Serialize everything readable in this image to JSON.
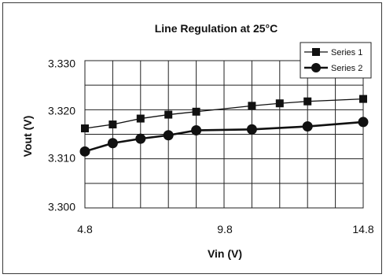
{
  "chart_data": {
    "type": "line",
    "title": "Line Regulation at 25°C",
    "xlabel": "Vin (V)",
    "ylabel": "Vout (V)",
    "xlim": [
      4.8,
      14.8
    ],
    "ylim": [
      3.3,
      3.33
    ],
    "x_ticks": [
      "4.8",
      "9.8",
      "14.8"
    ],
    "y_ticks": [
      "3.330",
      "3.320",
      "3.310",
      "3.300"
    ],
    "grid": true,
    "legend_position": "top-right",
    "series": [
      {
        "name": "Series 1",
        "marker": "square",
        "x": [
          4.8,
          5.8,
          6.8,
          7.8,
          8.8,
          10.8,
          11.8,
          12.8,
          14.8
        ],
        "y": [
          3.3162,
          3.317,
          3.3182,
          3.319,
          3.3196,
          3.3208,
          3.3213,
          3.3217,
          3.3222
        ]
      },
      {
        "name": "Series 2",
        "marker": "circle",
        "x": [
          4.8,
          5.8,
          6.8,
          7.8,
          8.8,
          10.8,
          12.8,
          14.8
        ],
        "y": [
          3.3115,
          3.3132,
          3.3141,
          3.3148,
          3.3158,
          3.316,
          3.3166,
          3.3175
        ]
      }
    ],
    "colors": {
      "line": "#111111",
      "grid": "#222222",
      "frame": "#3a3a3a"
    }
  }
}
